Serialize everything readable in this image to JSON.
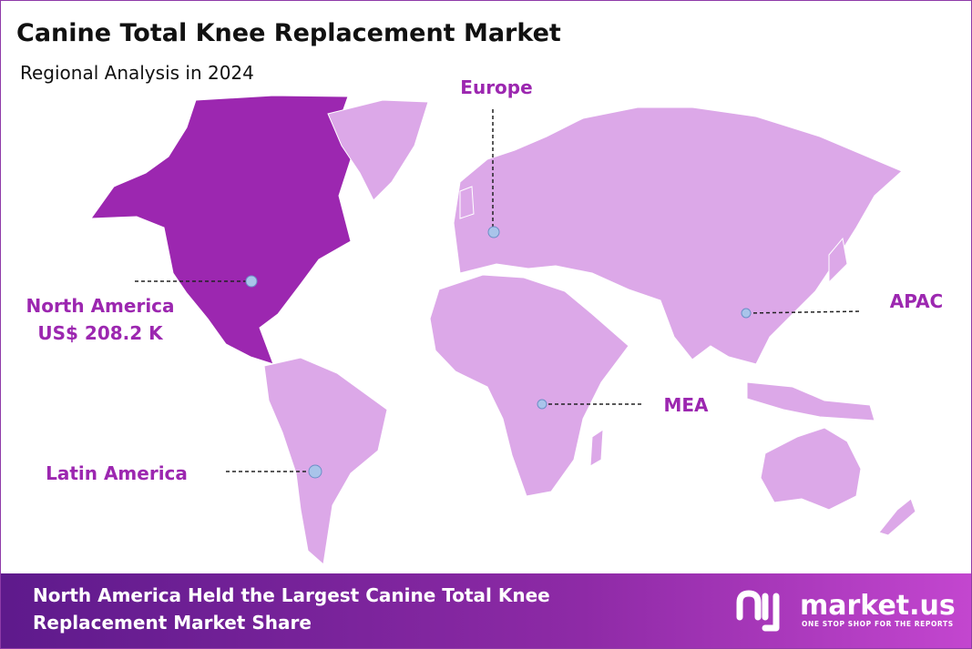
{
  "header": {
    "title": "Canine Total Knee Replacement Market",
    "subtitle": "Regional Analysis in 2024"
  },
  "regions": [
    {
      "label": "North America",
      "value": "US$ 208.2 K"
    },
    {
      "label": "Europe"
    },
    {
      "label": "APAC"
    },
    {
      "label": "MEA"
    },
    {
      "label": "Latin America"
    }
  ],
  "footer": {
    "headline": [
      "North America Held the Largest Canine Total Knee",
      "Replacement  Market Share"
    ]
  },
  "logo": {
    "name": "market.us",
    "tagline": "ONE STOP SHOP FOR THE REPORTS"
  }
}
